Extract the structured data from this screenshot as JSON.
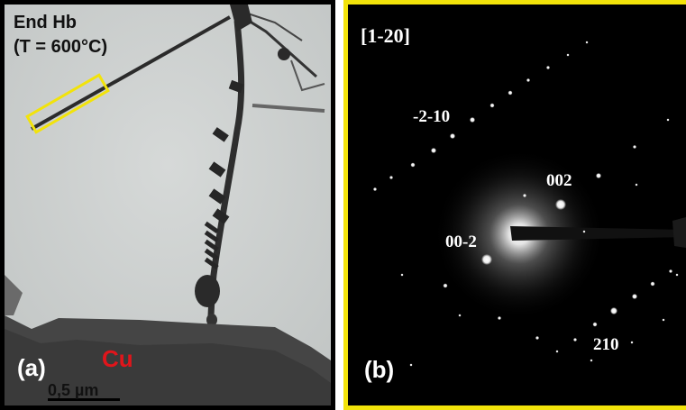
{
  "panel_a": {
    "title_line1": "End Hb",
    "title_line2": "(T = 600°C)",
    "panel_label": "(a)",
    "material_label": "Cu",
    "scale_bar_label": "0,5 µm",
    "colors": {
      "highlight_box": "#f2e30a",
      "material_label": "#e0151b"
    }
  },
  "panel_b": {
    "zone_axis": "[1-20]",
    "panel_label": "(b)",
    "spot_labels": {
      "s1": "-2-10",
      "s2": "002",
      "s3": "00-2",
      "s4": "210"
    },
    "colors": {
      "border": "#f2e30a"
    }
  }
}
